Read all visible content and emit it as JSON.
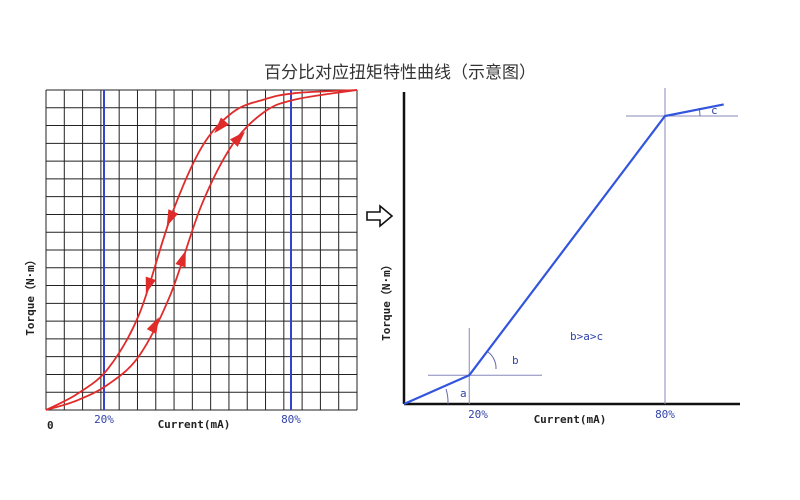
{
  "title": "百分比对应扭矩特性曲线（示意图）",
  "colors": {
    "grid": "#222222",
    "blue_line": "#3344cc",
    "red_curve": "#e02b2b",
    "axis": "#111111",
    "blue_curve": "#3355dd"
  },
  "chart_data": [
    {
      "type": "line",
      "xlabel": "Current(mA)",
      "ylabel": "Torque（N·m）",
      "origin_label": "0",
      "x_marks": [
        "20%",
        "80%"
      ],
      "xlim": [
        0,
        100
      ],
      "ylim": [
        0,
        100
      ],
      "grid": true,
      "series": [
        {
          "values": [
            [
              0,
              0
            ],
            [
              10,
              5
            ],
            [
              20,
              13
            ],
            [
              30,
              30
            ],
            [
              40,
              60
            ],
            [
              50,
              82
            ],
            [
              60,
              93
            ],
            [
              70,
              97
            ],
            [
              80,
              99
            ],
            [
              100,
              100
            ]
          ]
        },
        {
          "values": [
            [
              0,
              0
            ],
            [
              10,
              3
            ],
            [
              20,
              8
            ],
            [
              30,
              17
            ],
            [
              40,
              36
            ],
            [
              50,
              64
            ],
            [
              60,
              83
            ],
            [
              70,
              93
            ],
            [
              80,
              97
            ],
            [
              100,
              100
            ]
          ]
        }
      ]
    },
    {
      "type": "line",
      "xlabel": "Current(mA)",
      "ylabel": "Torque（N·m）",
      "x_marks": [
        "20%",
        "80%"
      ],
      "grid": false,
      "annotations": [
        "a",
        "b",
        "c",
        "b>a>c"
      ],
      "series": [
        {
          "values": [
            [
              0,
              0
            ],
            [
              20,
              10
            ],
            [
              80,
              100
            ],
            [
              98,
              104
            ]
          ]
        }
      ]
    }
  ]
}
